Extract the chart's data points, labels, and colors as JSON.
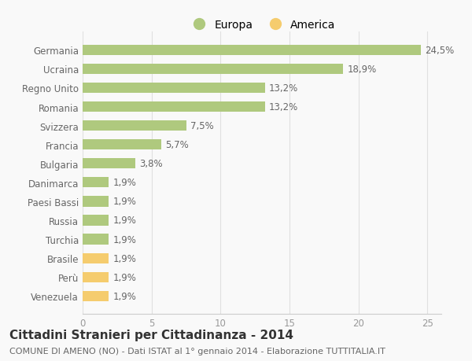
{
  "categories": [
    "Venezuela",
    "Perù",
    "Brasile",
    "Turchia",
    "Russia",
    "Paesi Bassi",
    "Danimarca",
    "Bulgaria",
    "Francia",
    "Svizzera",
    "Romania",
    "Regno Unito",
    "Ucraina",
    "Germania"
  ],
  "values": [
    1.9,
    1.9,
    1.9,
    1.9,
    1.9,
    1.9,
    1.9,
    3.8,
    5.7,
    7.5,
    13.2,
    13.2,
    18.9,
    24.5
  ],
  "labels": [
    "1,9%",
    "1,9%",
    "1,9%",
    "1,9%",
    "1,9%",
    "1,9%",
    "1,9%",
    "3,8%",
    "5,7%",
    "7,5%",
    "13,2%",
    "13,2%",
    "18,9%",
    "24,5%"
  ],
  "colors": [
    "#f5cc6e",
    "#f5cc6e",
    "#f5cc6e",
    "#afc97e",
    "#afc97e",
    "#afc97e",
    "#afc97e",
    "#afc97e",
    "#afc97e",
    "#afc97e",
    "#afc97e",
    "#afc97e",
    "#afc97e",
    "#afc97e"
  ],
  "europa_color": "#afc97e",
  "america_color": "#f5cc6e",
  "title": "Cittadini Stranieri per Cittadinanza - 2014",
  "subtitle": "COMUNE DI AMENO (NO) - Dati ISTAT al 1° gennaio 2014 - Elaborazione TUTTITALIA.IT",
  "xlim": [
    0,
    26
  ],
  "xticks": [
    0,
    5,
    10,
    15,
    20,
    25
  ],
  "background_color": "#f9f9f9",
  "bar_height": 0.55,
  "label_fontsize": 8.5,
  "title_fontsize": 11,
  "subtitle_fontsize": 8,
  "tick_fontsize": 8.5
}
